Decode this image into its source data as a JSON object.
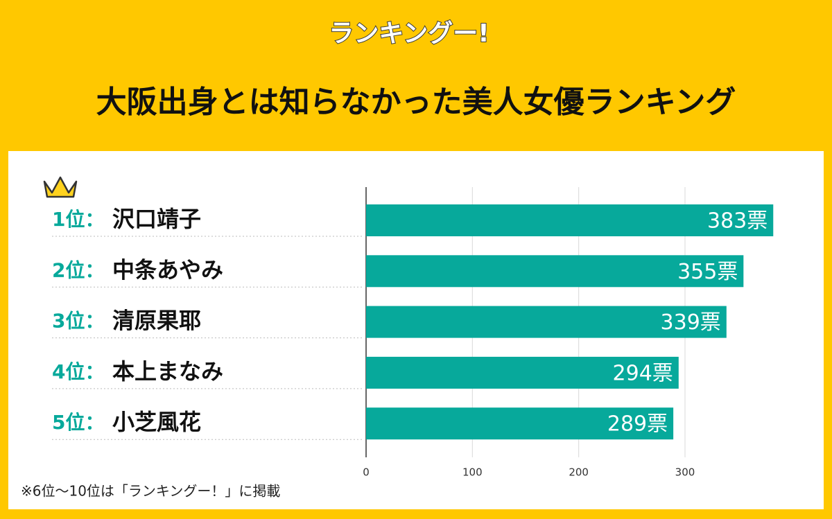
{
  "logo": "ランキングー!",
  "chart_data": {
    "type": "bar",
    "title": "大阪出身とは知らなかった美人女優ランキング",
    "ranks": [
      "1位：",
      "2位：",
      "3位：",
      "4位：",
      "5位："
    ],
    "categories": [
      "沢口靖子",
      "中条あやみ",
      "清原果耶",
      "本上まなみ",
      "小芝風花"
    ],
    "values": [
      383,
      355,
      339,
      294,
      289
    ],
    "value_labels": [
      "383票",
      "355票",
      "339票",
      "294票",
      "289票"
    ],
    "color": "#07a99b",
    "xlim": [
      0,
      400
    ],
    "xticks": [
      0,
      100,
      200,
      300
    ],
    "grid": true,
    "note": "※6位～10位は「ランキングー！」に掲載"
  }
}
